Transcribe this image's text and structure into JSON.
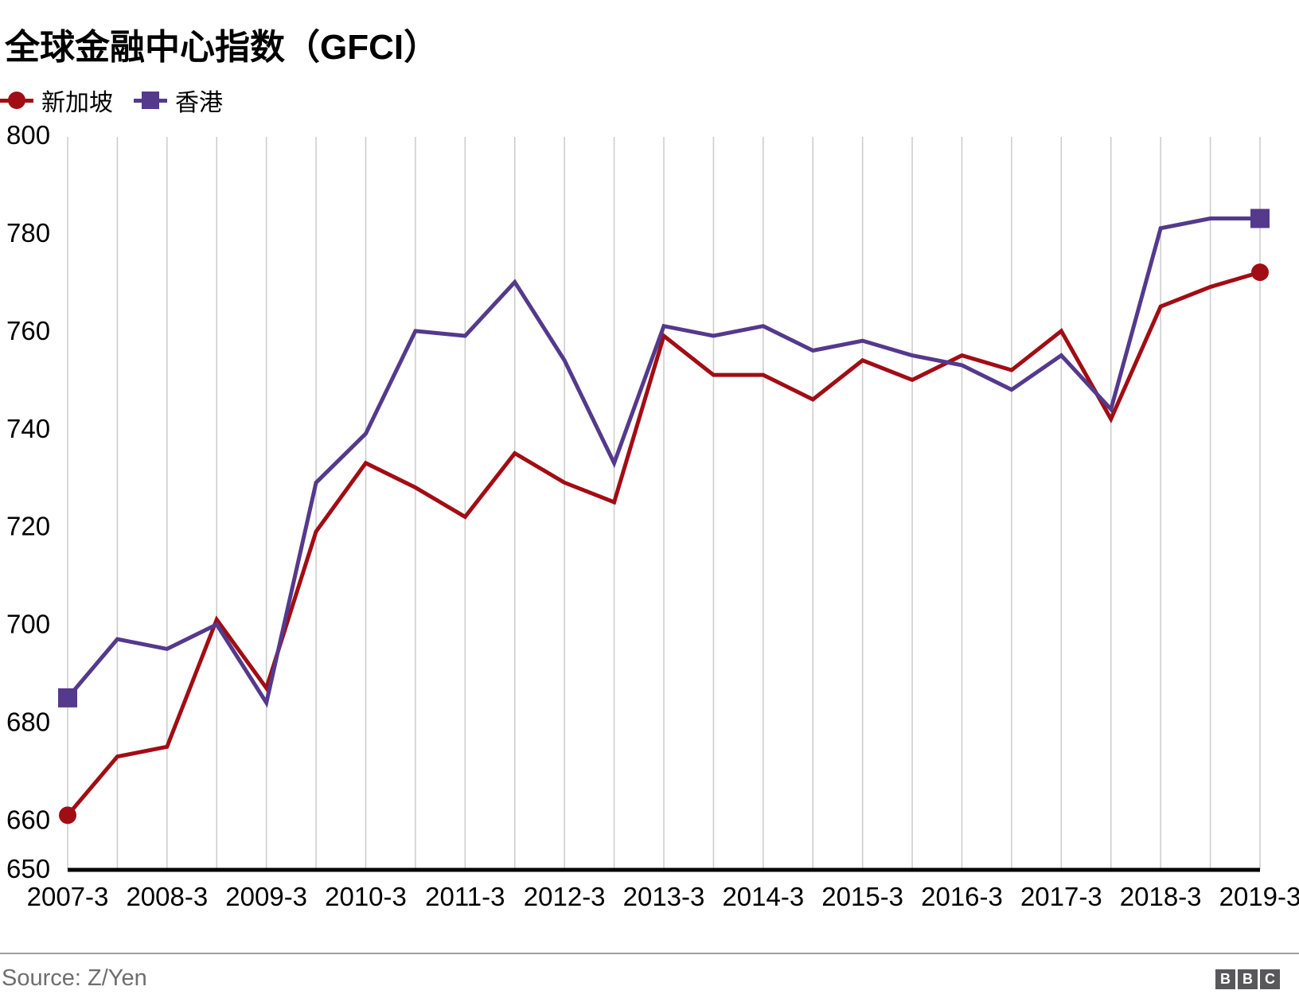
{
  "title": "全球金融中心指数（GFCI）",
  "footer": {
    "source": "Source: Z/Yen",
    "logo_letters": [
      "B",
      "B",
      "C"
    ]
  },
  "colors": {
    "singapore": "#a10d14",
    "hongkong": "#54398c",
    "gridline": "#cbcbcb",
    "axis": "#000000",
    "tick_text": "#000000",
    "source_text": "#6e6e6e",
    "divider": "#9e9e9e",
    "logo_box": "#57575c"
  },
  "chart_data": {
    "type": "line",
    "title": "全球金融中心指数（GFCI）",
    "xlabel": "",
    "ylabel": "",
    "ylim": [
      650,
      800
    ],
    "grid": "vertical-only",
    "legend_position": "top-left",
    "categories": [
      "2007-3",
      "2007-9",
      "2008-3",
      "2008-9",
      "2009-3",
      "2009-9",
      "2010-3",
      "2010-9",
      "2011-3",
      "2011-9",
      "2012-3",
      "2012-9",
      "2013-3",
      "2013-9",
      "2014-3",
      "2014-9",
      "2015-3",
      "2015-9",
      "2016-3",
      "2016-9",
      "2017-3",
      "2017-9",
      "2018-3",
      "2018-9",
      "2019-3"
    ],
    "xticks": [
      "2007-3",
      "2008-3",
      "2009-3",
      "2010-3",
      "2011-3",
      "2012-3",
      "2013-3",
      "2014-3",
      "2015-3",
      "2016-3",
      "2017-3",
      "2018-3",
      "2019-3"
    ],
    "yticks": [
      800,
      780,
      760,
      740,
      720,
      700,
      680,
      660,
      650
    ],
    "series": [
      {
        "name": "新加坡",
        "color": "#a10d14",
        "marker": "circle",
        "values": [
          661,
          673,
          675,
          701,
          687,
          719,
          733,
          728,
          722,
          735,
          729,
          725,
          759,
          751,
          751,
          746,
          754,
          750,
          755,
          752,
          760,
          742,
          765,
          769,
          772
        ]
      },
      {
        "name": "香港",
        "color": "#54398c",
        "marker": "square",
        "values": [
          685,
          697,
          695,
          700,
          684,
          729,
          739,
          760,
          759,
          770,
          754,
          733,
          761,
          759,
          761,
          756,
          758,
          755,
          753,
          748,
          755,
          744,
          781,
          783,
          783
        ]
      }
    ]
  }
}
